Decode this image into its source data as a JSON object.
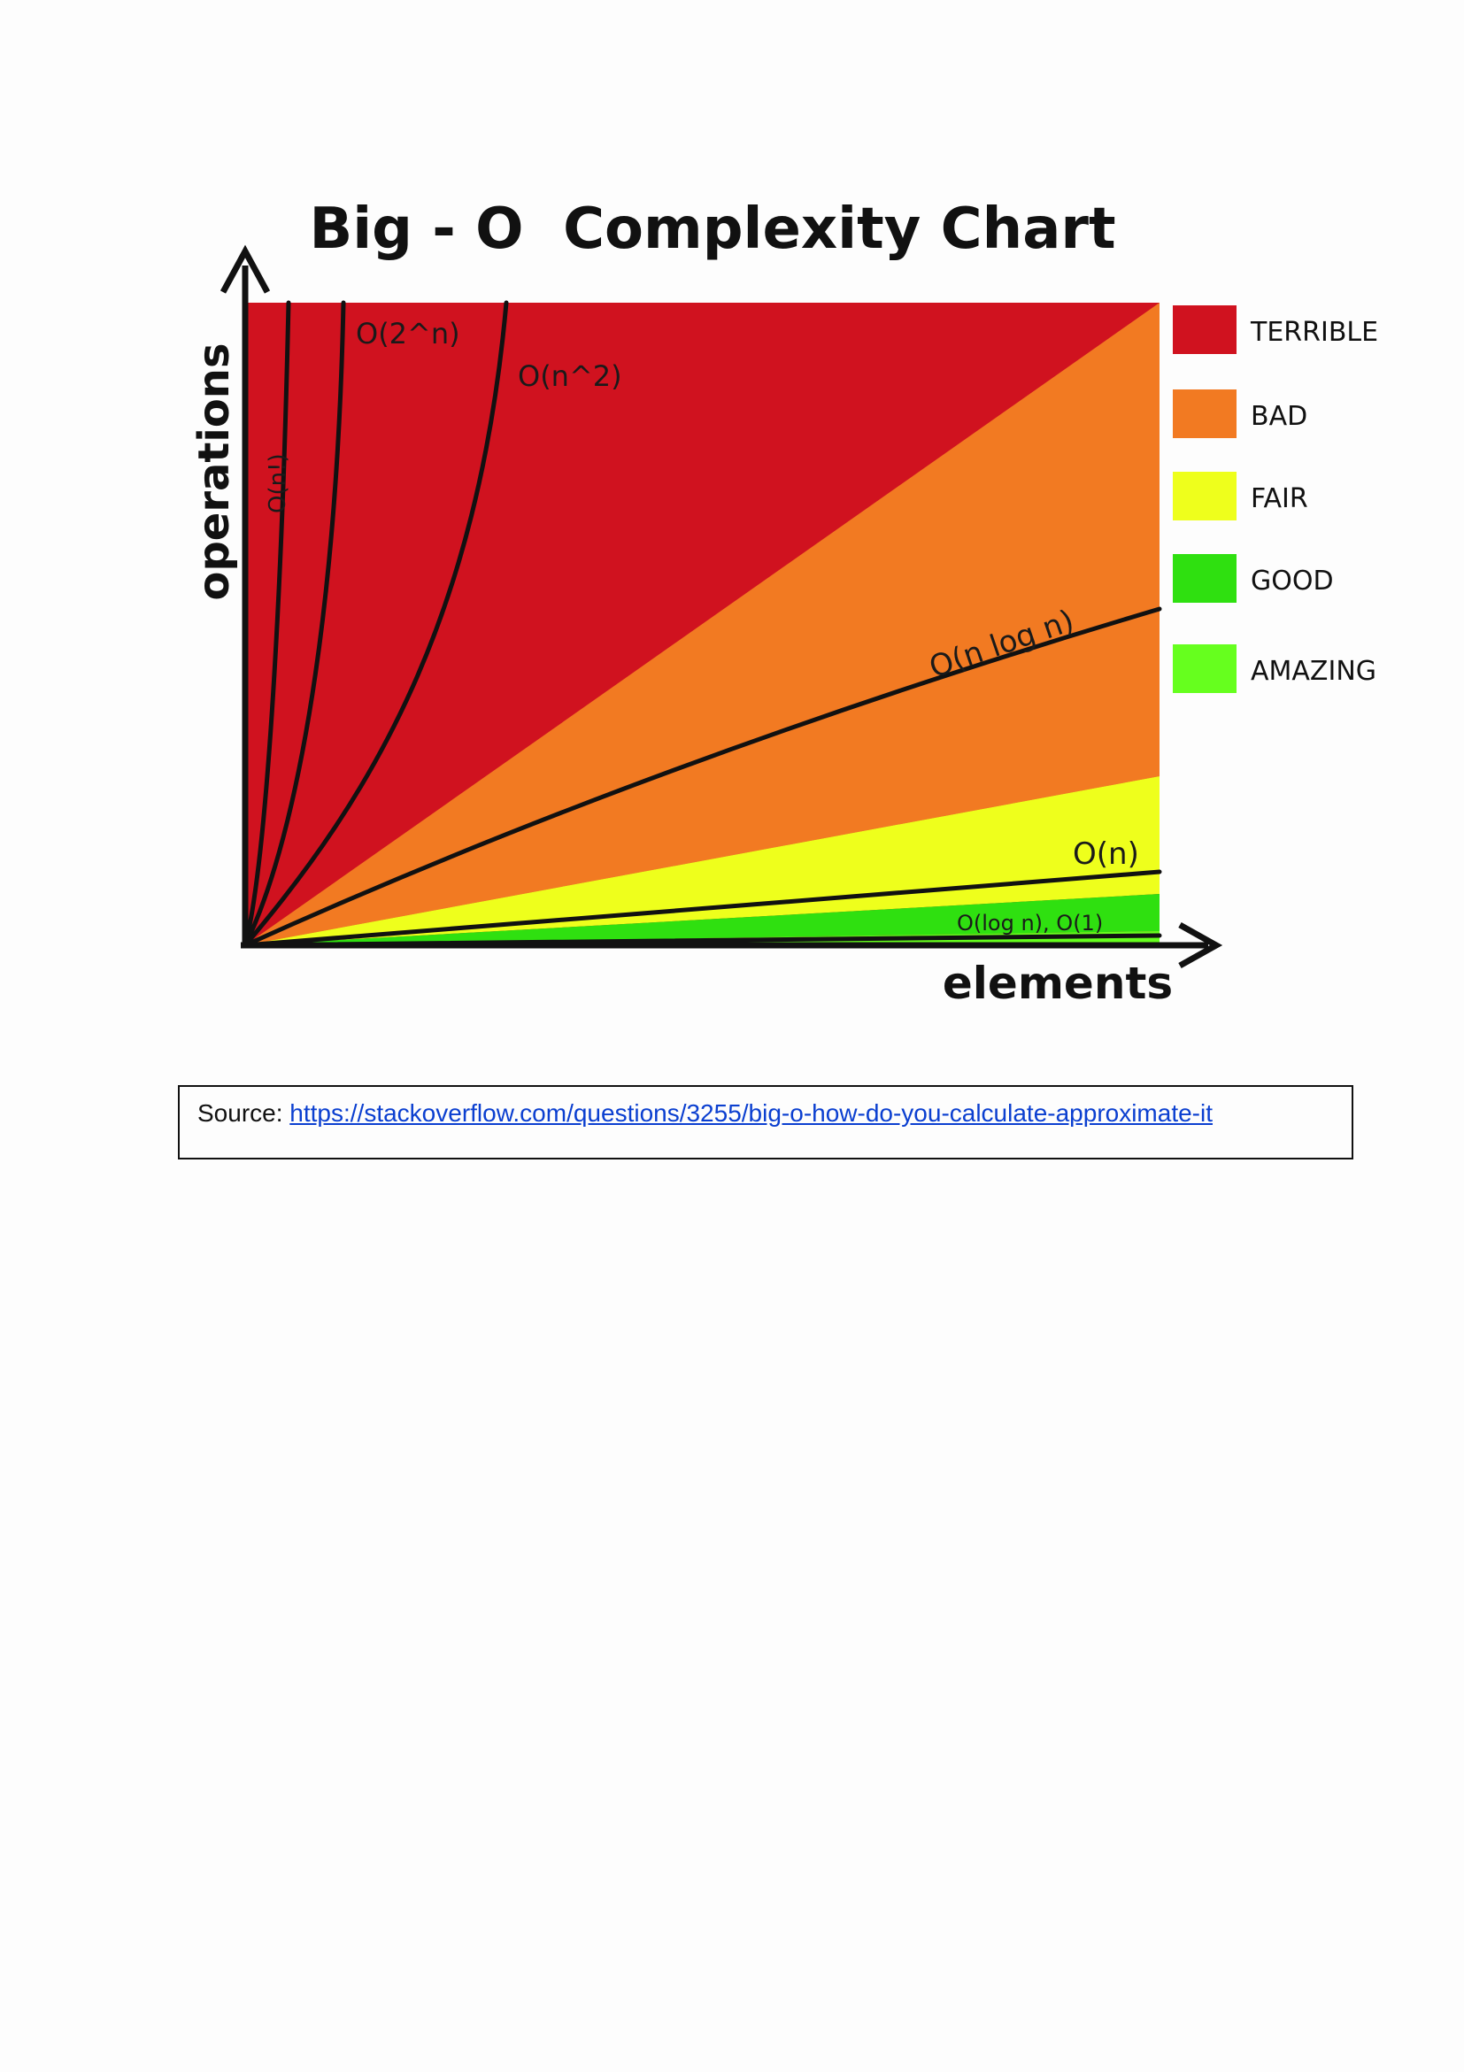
{
  "chart_data": {
    "type": "area",
    "title": "Big - O  Complexity Chart",
    "xlabel": "elements",
    "ylabel": "operations",
    "grid": false,
    "legend_position": "right",
    "legend": [
      {
        "label": "TERRIBLE",
        "color": "#d0121f"
      },
      {
        "label": "BAD",
        "color": "#f27a22"
      },
      {
        "label": "FAIR",
        "color": "#eeff1c"
      },
      {
        "label": "GOOD",
        "color": "#2fe010"
      },
      {
        "label": "AMAZING",
        "color": "#66ff1e"
      }
    ],
    "series": [
      {
        "name": "O(n!)",
        "color": "#111111"
      },
      {
        "name": "O(2^n)",
        "color": "#111111"
      },
      {
        "name": "O(n^2)",
        "color": "#111111"
      },
      {
        "name": "O(n log n)",
        "color": "#111111"
      },
      {
        "name": "O(n)",
        "color": "#111111"
      },
      {
        "name": "O(log n), O(1)",
        "color": "#111111"
      }
    ]
  },
  "source": {
    "prefix": "Source: ",
    "link_text": "https://stackoverflow.com/questions/3255/big-o-how-do-you-calculate-approximate-it"
  }
}
